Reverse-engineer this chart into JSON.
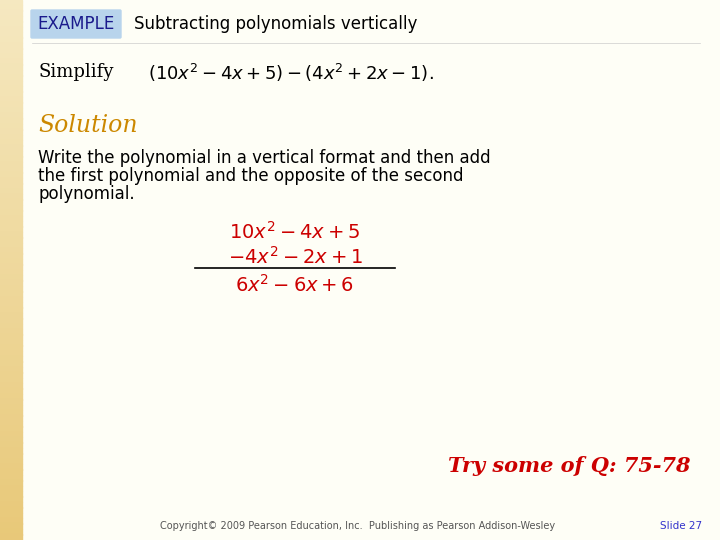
{
  "bg_color": "#fefef6",
  "example_box_color": "#b8d4ec",
  "example_text": "EXAMPLE",
  "example_text_color": "#1a1a8c",
  "title_text": "Subtracting polynomials vertically",
  "simplify_label": "Simplify",
  "simplify_formula": "$(10x^2-4x+5)-(4x^2+2x-1).$",
  "solution_text": "Solution",
  "solution_color": "#cc8800",
  "body_text_line1": "Write the polynomial in a vertical format and then add",
  "body_text_line2": "the first polynomial and the opposite of the second",
  "body_text_line3": "polynomial.",
  "row1": "$10x^2-4x+5$",
  "row2": "$-4x^2-2x+1$",
  "row3": "$6x^2-6x+6$",
  "math_color": "#cc0000",
  "try_text": "Try some of Q: 75-78",
  "try_color": "#cc0000",
  "copyright_text": "Copyright© 2009 Pearson Education, Inc.  Publishing as Pearson Addison-Wesley",
  "slide_text": "Slide 27",
  "slide_color": "#3333cc",
  "left_bar_top_color": "#f5e8c0",
  "left_bar_bottom_color": "#e8c878"
}
